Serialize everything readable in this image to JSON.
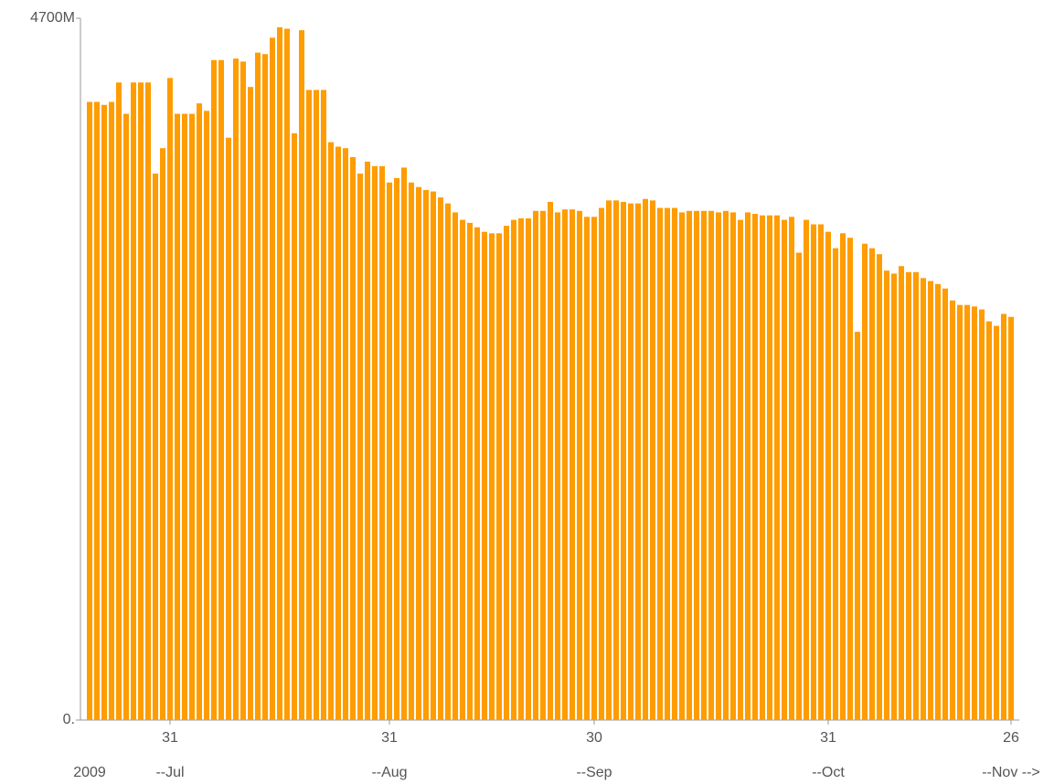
{
  "chart_data": {
    "type": "bar",
    "color": "#ff9c00",
    "categories": [
      null,
      null,
      null,
      null,
      null,
      null,
      null,
      null,
      null,
      null,
      null,
      "31",
      null,
      null,
      null,
      null,
      null,
      null,
      null,
      null,
      null,
      null,
      null,
      null,
      null,
      null,
      null,
      null,
      null,
      null,
      null,
      null,
      null,
      null,
      null,
      null,
      null,
      null,
      null,
      null,
      null,
      "31",
      null,
      null,
      null,
      null,
      null,
      null,
      null,
      null,
      null,
      null,
      null,
      null,
      null,
      null,
      null,
      null,
      null,
      null,
      null,
      null,
      null,
      null,
      null,
      null,
      null,
      null,
      null,
      "30",
      null,
      null,
      null,
      null,
      null,
      null,
      null,
      null,
      null,
      null,
      null,
      null,
      null,
      null,
      null,
      null,
      null,
      null,
      null,
      null,
      null,
      null,
      null,
      null,
      null,
      null,
      null,
      null,
      null,
      null,
      null,
      "31",
      null,
      null,
      null,
      null,
      null,
      null,
      null,
      null,
      null,
      null,
      null,
      null,
      null,
      null,
      null,
      null,
      null,
      null,
      null,
      null,
      null,
      null,
      null,
      null,
      "26"
    ],
    "category_groups": [
      "2009",
      null,
      null,
      null,
      null,
      null,
      null,
      null,
      null,
      null,
      null,
      "--Jul",
      null,
      null,
      null,
      null,
      null,
      null,
      null,
      null,
      null,
      null,
      null,
      null,
      null,
      null,
      null,
      null,
      null,
      null,
      null,
      null,
      null,
      null,
      null,
      null,
      null,
      null,
      null,
      null,
      null,
      "--Aug",
      null,
      null,
      null,
      null,
      null,
      null,
      null,
      null,
      null,
      null,
      null,
      null,
      null,
      null,
      null,
      null,
      null,
      null,
      null,
      null,
      null,
      null,
      null,
      null,
      null,
      null,
      null,
      "--Sep",
      null,
      null,
      null,
      null,
      null,
      null,
      null,
      null,
      null,
      null,
      null,
      null,
      null,
      null,
      null,
      null,
      null,
      null,
      null,
      null,
      null,
      null,
      null,
      null,
      null,
      null,
      null,
      null,
      null,
      null,
      null,
      "--Oct",
      null,
      null,
      null,
      null,
      null,
      null,
      null,
      null,
      null,
      null,
      null,
      null,
      null,
      null,
      null,
      null,
      null,
      null,
      null,
      null,
      null,
      null,
      null,
      null,
      "--Nov -->"
    ],
    "values": [
      4140,
      4140,
      4120,
      4140,
      4270,
      4060,
      4270,
      4270,
      4270,
      3660,
      3830,
      4300,
      4060,
      4060,
      4060,
      4130,
      4080,
      4420,
      4420,
      3900,
      4430,
      4410,
      4240,
      4470,
      4460,
      4570,
      4640,
      4630,
      3930,
      4620,
      4220,
      4220,
      4220,
      3870,
      3840,
      3830,
      3770,
      3660,
      3740,
      3710,
      3710,
      3600,
      3630,
      3700,
      3600,
      3570,
      3550,
      3540,
      3500,
      3460,
      3400,
      3350,
      3330,
      3300,
      3270,
      3260,
      3260,
      3310,
      3350,
      3360,
      3360,
      3410,
      3410,
      3470,
      3400,
      3420,
      3420,
      3410,
      3370,
      3370,
      3430,
      3480,
      3480,
      3470,
      3460,
      3460,
      3490,
      3480,
      3430,
      3430,
      3430,
      3400,
      3410,
      3410,
      3410,
      3410,
      3400,
      3410,
      3400,
      3350,
      3400,
      3390,
      3380,
      3380,
      3380,
      3350,
      3370,
      3130,
      3350,
      3320,
      3320,
      3270,
      3160,
      3260,
      3230,
      2600,
      3190,
      3160,
      3120,
      3010,
      2990,
      3040,
      3000,
      3000,
      2960,
      2940,
      2920,
      2890,
      2810,
      2780,
      2780,
      2770,
      2750,
      2670,
      2640,
      2720,
      2700
    ],
    "ylim": [
      0,
      4700
    ],
    "yticks": [
      {
        "value": 0,
        "label": "0."
      },
      {
        "value": 4700,
        "label": "4700M"
      }
    ]
  }
}
